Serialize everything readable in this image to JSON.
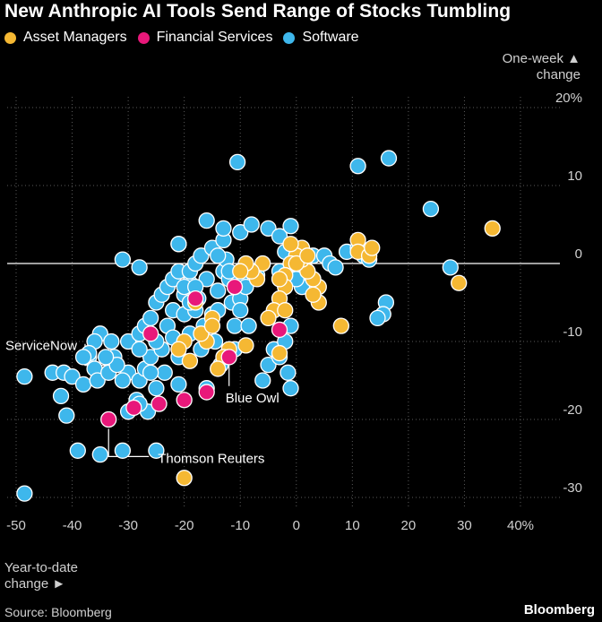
{
  "chart_data": {
    "type": "scatter",
    "title": "New Anthropic AI Tools Send Range of Stocks Tumbling",
    "xlabel_line1": "Year-to-date",
    "xlabel_line2": "change",
    "ylabel_line1": "One-week",
    "ylabel_line2": "change",
    "xlim": [
      -50,
      40
    ],
    "ylim": [
      -30,
      20
    ],
    "x_ticks": [
      -50,
      -40,
      -30,
      -20,
      -10,
      0,
      10,
      20,
      30,
      40
    ],
    "x_tick_labels": [
      "-50",
      "-40",
      "-30",
      "-20",
      "-10",
      "0",
      "10",
      "20",
      "30",
      "40%"
    ],
    "y_ticks": [
      20,
      10,
      0,
      -10,
      -20,
      -30
    ],
    "y_tick_labels": [
      "20%",
      "10",
      "0",
      "-10",
      "-20",
      "-30"
    ],
    "source": "Source: Bloomberg",
    "brand": "Bloomberg",
    "colors": {
      "Asset Managers": "#f5b833",
      "Financial Services": "#e8187a",
      "Software": "#3eb7ec"
    },
    "legend": [
      "Asset Managers",
      "Financial Services",
      "Software"
    ],
    "annotations": [
      {
        "label": "ServiceNow",
        "x": -34.5,
        "y": -11,
        "side": "left"
      },
      {
        "label": "Blue Owl",
        "x": -12,
        "y": -12.5,
        "side": "below"
      },
      {
        "label": "Thomson Reuters",
        "x": -33.5,
        "y": -20.5,
        "side": "right"
      }
    ],
    "series": [
      {
        "name": "Software",
        "points": [
          [
            -48.5,
            -29.5
          ],
          [
            -48.5,
            -14.5
          ],
          [
            -43.5,
            -14
          ],
          [
            -42,
            -17
          ],
          [
            -41,
            -19.5
          ],
          [
            -41.5,
            -14
          ],
          [
            -40,
            -14.5
          ],
          [
            -39,
            -24
          ],
          [
            -38,
            -15.5
          ],
          [
            -37,
            -12
          ],
          [
            -36,
            -13.5
          ],
          [
            -35,
            -24.5
          ],
          [
            -35.5,
            -15
          ],
          [
            -33.5,
            -14
          ],
          [
            -32.5,
            -12
          ],
          [
            -31,
            -24
          ],
          [
            -30,
            -19
          ],
          [
            -30,
            -14
          ],
          [
            -29,
            -10
          ],
          [
            -28.5,
            -17.5
          ],
          [
            -28,
            -15
          ],
          [
            -27,
            -13.5
          ],
          [
            -26,
            -12
          ],
          [
            -26.5,
            -19
          ],
          [
            -25,
            -24
          ],
          [
            -25,
            -16
          ],
          [
            -24,
            -11
          ],
          [
            -23.5,
            -14
          ],
          [
            -23,
            -8
          ],
          [
            -22,
            -6
          ],
          [
            -22,
            -9.5
          ],
          [
            -21,
            -12
          ],
          [
            -21,
            -15.5
          ],
          [
            -20,
            -6.5
          ],
          [
            -20,
            -4
          ],
          [
            -19,
            -2.5
          ],
          [
            -19,
            -9
          ],
          [
            -18,
            -6
          ],
          [
            -17.5,
            -4.5
          ],
          [
            -17,
            -11
          ],
          [
            -16.5,
            -8
          ],
          [
            -16,
            -2
          ],
          [
            -16,
            -16
          ],
          [
            -15,
            -6.5
          ],
          [
            -14.5,
            -10
          ],
          [
            -14,
            -3.5
          ],
          [
            -13.5,
            -13
          ],
          [
            -13,
            -1
          ],
          [
            -12.5,
            0.5
          ],
          [
            -11.5,
            -5
          ],
          [
            -11,
            -8
          ],
          [
            -11,
            -11
          ],
          [
            -10,
            -2
          ],
          [
            -10,
            -4.5
          ],
          [
            -9,
            -3
          ],
          [
            -8.5,
            -8
          ],
          [
            -7,
            -1.5
          ],
          [
            -6,
            -15
          ],
          [
            -5,
            -13
          ],
          [
            -4,
            -11
          ],
          [
            -3,
            -12
          ],
          [
            -2,
            -10
          ],
          [
            -1.5,
            -14
          ],
          [
            -1,
            -16
          ],
          [
            -1,
            -8
          ],
          [
            -1,
            -2
          ],
          [
            -2,
            1.5
          ],
          [
            -3,
            -1
          ],
          [
            0,
            0.5
          ],
          [
            0.5,
            -1.5
          ],
          [
            1,
            -3
          ],
          [
            2,
            -1
          ],
          [
            3,
            1
          ],
          [
            5,
            1
          ],
          [
            6,
            0
          ],
          [
            7,
            -0.5
          ],
          [
            9,
            1.5
          ],
          [
            11,
            2
          ],
          [
            12,
            1
          ],
          [
            13,
            0.5
          ],
          [
            -35,
            -9
          ],
          [
            -36,
            -10
          ],
          [
            -37,
            -11.5
          ],
          [
            -38,
            -12
          ],
          [
            -30,
            -10
          ],
          [
            -28,
            -11
          ],
          [
            -28,
            -9
          ],
          [
            -27,
            -8
          ],
          [
            -26,
            -7
          ],
          [
            -25,
            -5
          ],
          [
            -24,
            -4
          ],
          [
            -23,
            -3
          ],
          [
            -22,
            -2
          ],
          [
            -21,
            -1
          ],
          [
            -20,
            -3
          ],
          [
            -19,
            -1
          ],
          [
            -18,
            0
          ],
          [
            -17,
            1
          ],
          [
            -21,
            2.5
          ],
          [
            -15,
            2
          ],
          [
            -14,
            1
          ],
          [
            -13,
            3
          ],
          [
            -12,
            -2
          ],
          [
            -16,
            5.5
          ],
          [
            -13,
            4.5
          ],
          [
            -10,
            4
          ],
          [
            -8,
            5
          ],
          [
            -5,
            4.5
          ],
          [
            -3,
            3.5
          ],
          [
            -1,
            4.8
          ],
          [
            0,
            -2
          ],
          [
            -12,
            -1
          ],
          [
            -10,
            -6
          ],
          [
            -18,
            -3
          ],
          [
            -19,
            -5
          ],
          [
            -25,
            -10
          ],
          [
            -26,
            -14
          ],
          [
            -28,
            -18
          ],
          [
            -31,
            -15
          ],
          [
            -32,
            -13
          ],
          [
            -33,
            -10
          ],
          [
            -34,
            -12
          ],
          [
            -31,
            0.5
          ],
          [
            -28,
            -0.5
          ],
          [
            -21,
            2.5
          ],
          [
            -14,
            -6
          ],
          [
            -10.5,
            13
          ],
          [
            11,
            12.5
          ],
          [
            16.5,
            13.5
          ],
          [
            24,
            7
          ],
          [
            27.5,
            -0.5
          ],
          [
            16,
            -5
          ],
          [
            15.5,
            -6.5
          ],
          [
            14.5,
            -7
          ]
        ]
      },
      {
        "name": "Asset Managers",
        "points": [
          [
            35,
            4.5
          ],
          [
            29,
            -2.5
          ],
          [
            11,
            3
          ],
          [
            11,
            1.5
          ],
          [
            13,
            1
          ],
          [
            13.5,
            2
          ],
          [
            8,
            -8
          ],
          [
            4,
            -5
          ],
          [
            4,
            -3
          ],
          [
            3,
            -4
          ],
          [
            3,
            -2
          ],
          [
            2,
            -1
          ],
          [
            1,
            0.5
          ],
          [
            1,
            2
          ],
          [
            0,
            1
          ],
          [
            -1,
            0
          ],
          [
            -2,
            -1.5
          ],
          [
            -2,
            -3
          ],
          [
            -3,
            -4.5
          ],
          [
            -4,
            -6
          ],
          [
            -5,
            -7
          ],
          [
            -6,
            0
          ],
          [
            -7,
            -2
          ],
          [
            -8,
            -1
          ],
          [
            -9,
            0
          ],
          [
            -10,
            -1
          ],
          [
            -11,
            -3
          ],
          [
            -12,
            -11
          ],
          [
            -13,
            -12
          ],
          [
            -14,
            -13.5
          ],
          [
            -15,
            -7
          ],
          [
            -16,
            -10
          ],
          [
            -17,
            -9
          ],
          [
            -18,
            -5
          ],
          [
            -19,
            -12.5
          ],
          [
            -20,
            -10
          ],
          [
            -21,
            -11
          ],
          [
            -15,
            -8
          ],
          [
            -9,
            -10.5
          ],
          [
            -3,
            -11.5
          ],
          [
            -2,
            -6
          ],
          [
            0,
            0
          ],
          [
            2,
            1
          ],
          [
            -1,
            2.5
          ],
          [
            -3,
            -2
          ],
          [
            -20,
            -27.5
          ]
        ]
      },
      {
        "name": "Financial Services",
        "points": [
          [
            -33.5,
            -20
          ],
          [
            -29,
            -18.5
          ],
          [
            -24.5,
            -18
          ],
          [
            -20,
            -17.5
          ],
          [
            -16,
            -16.5
          ],
          [
            -26,
            -9
          ],
          [
            -18,
            -4.5
          ],
          [
            -12,
            -12
          ],
          [
            -11,
            -3
          ],
          [
            -3,
            -8.5
          ]
        ]
      }
    ]
  }
}
